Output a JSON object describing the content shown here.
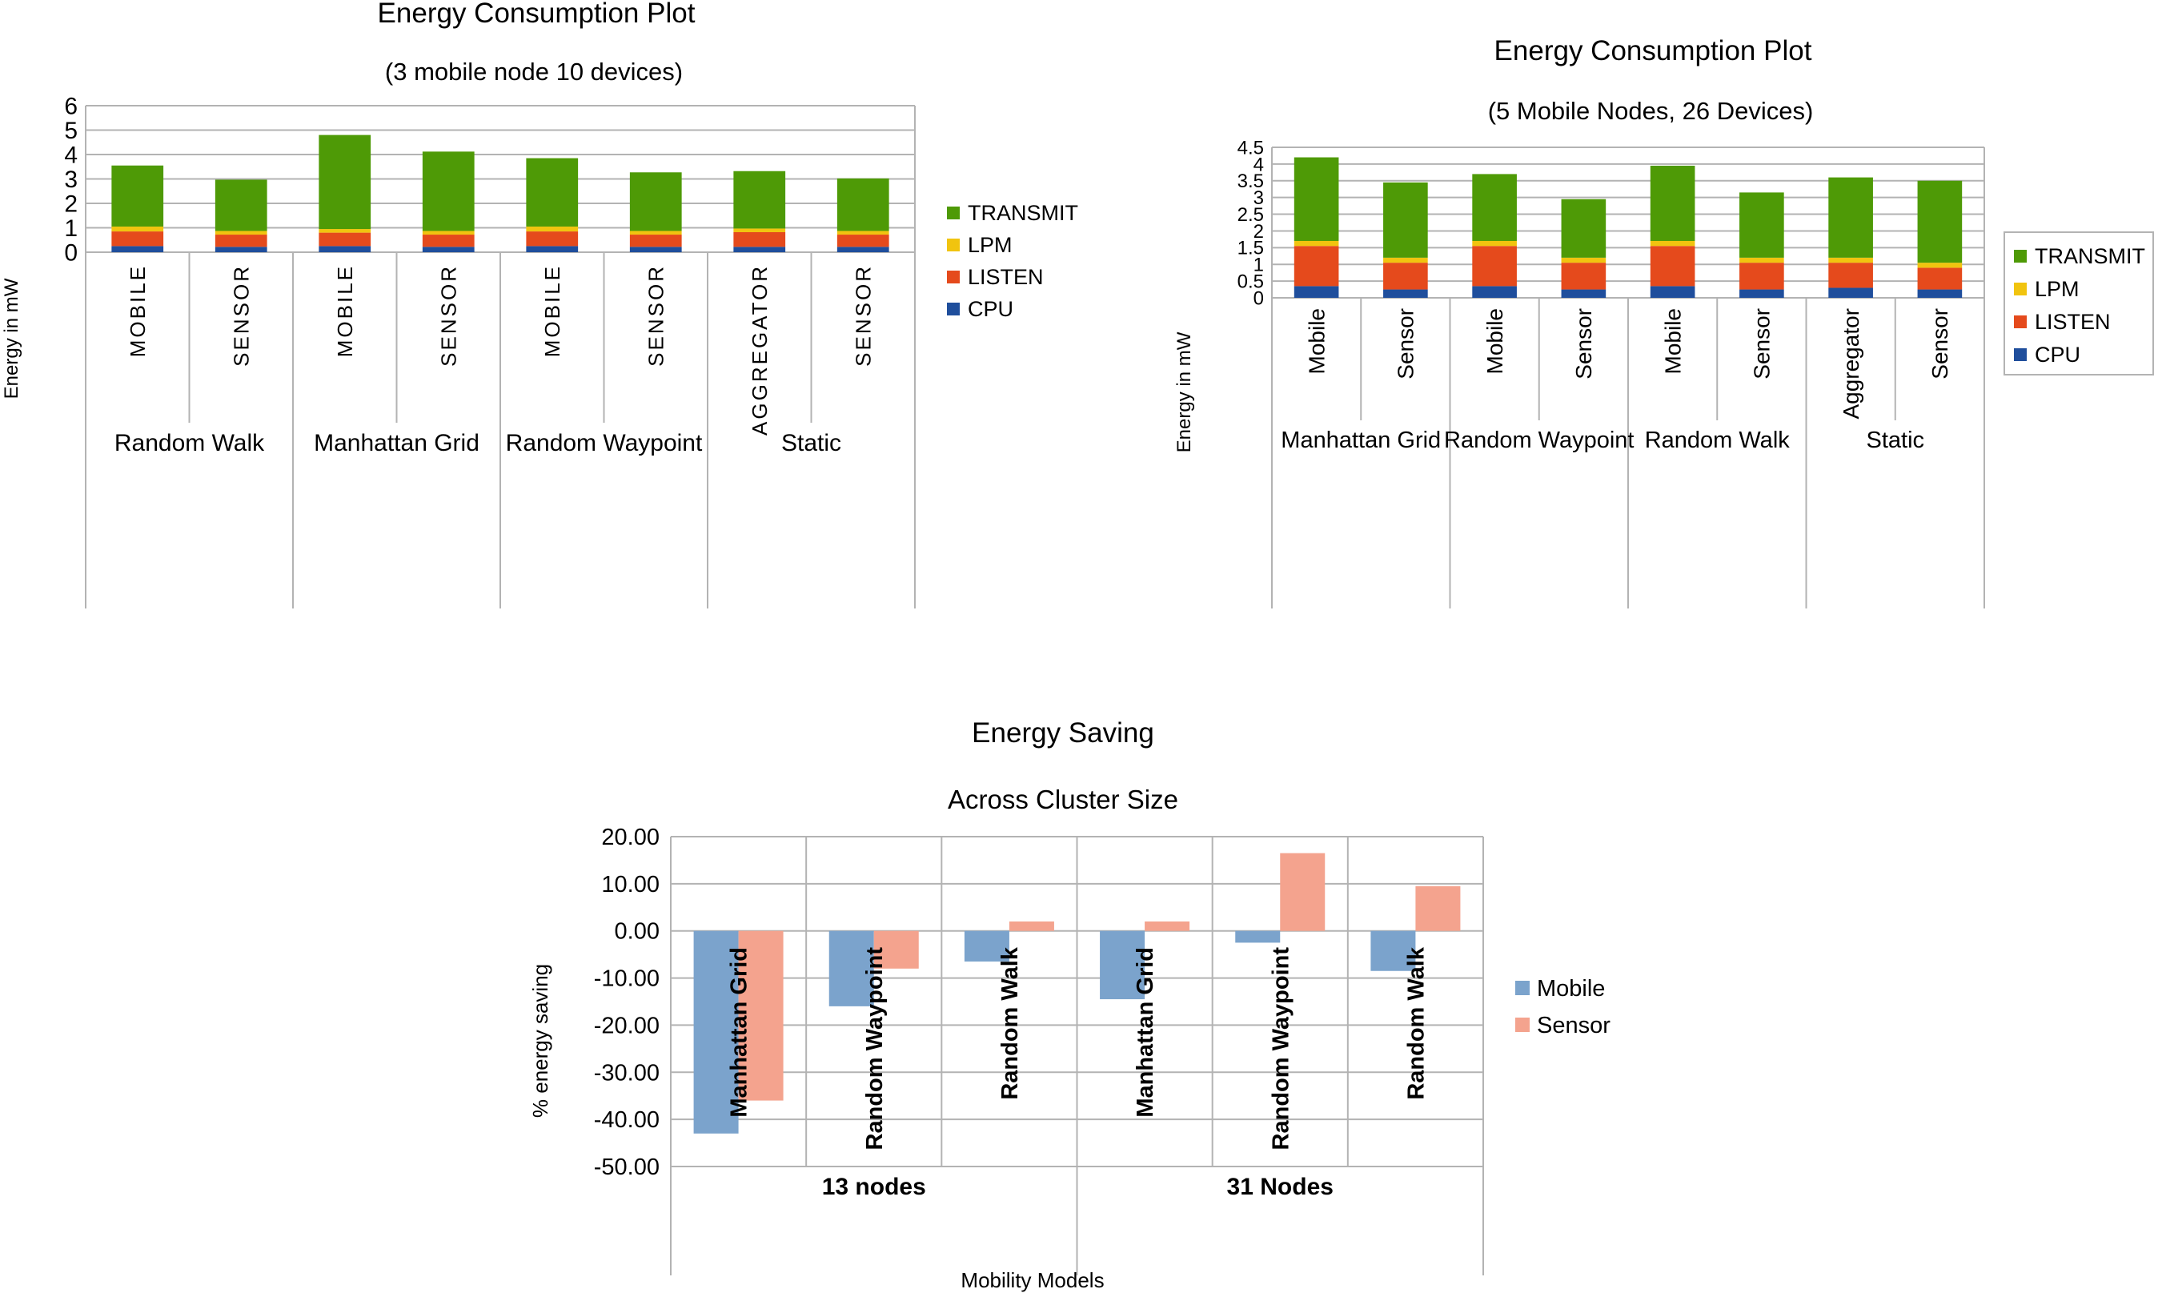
{
  "colors": {
    "transmit": "#4e9a06",
    "lpm": "#f1c40f",
    "listen": "#e54a1c",
    "cpu": "#1f4e9c",
    "mobile": "#7ba3cc",
    "sensor": "#f4a38e",
    "grid": "#b3b3b3"
  },
  "chart_data": [
    {
      "type": "bar",
      "stacked": true,
      "title": "Energy Consumption Plot",
      "subtitle": "(3 mobile node 10 devices)",
      "ylabel": "Energy in mW",
      "ylim": [
        0,
        6
      ],
      "yticks": [
        "0",
        "1",
        "2",
        "3",
        "4",
        "5",
        "6"
      ],
      "legend_position": "right",
      "categories": [
        "MOBILE",
        "SENSOR",
        "MOBILE",
        "SENSOR",
        "MOBILE",
        "SENSOR",
        "AGGREGATOR",
        "SENSOR"
      ],
      "groups": [
        "Random Walk",
        "Manhattan Grid",
        "Random Waypoint",
        "Static"
      ],
      "series": [
        {
          "name": "CPU",
          "values": [
            0.25,
            0.22,
            0.25,
            0.22,
            0.25,
            0.22,
            0.22,
            0.22
          ]
        },
        {
          "name": "LISTEN",
          "values": [
            0.6,
            0.5,
            0.55,
            0.5,
            0.6,
            0.5,
            0.6,
            0.5
          ]
        },
        {
          "name": "LPM",
          "values": [
            0.2,
            0.15,
            0.15,
            0.15,
            0.2,
            0.15,
            0.15,
            0.15
          ]
        },
        {
          "name": "TRANSMIT",
          "values": [
            2.5,
            2.1,
            3.85,
            3.25,
            2.8,
            2.4,
            2.35,
            2.15
          ]
        }
      ]
    },
    {
      "type": "bar",
      "stacked": true,
      "title": "Energy Consumption Plot",
      "subtitle": "(5 Mobile Nodes, 26 Devices)",
      "ylabel": "Energy in mW",
      "ylim": [
        0,
        4.5
      ],
      "yticks": [
        "0",
        "0.5",
        "1",
        "1.5",
        "2",
        "2.5",
        "3",
        "3.5",
        "4",
        "4.5"
      ],
      "legend_position": "right",
      "categories": [
        "Mobile",
        "Sensor",
        "Mobile",
        "Sensor",
        "Mobile",
        "Sensor",
        "Aggregator",
        "Sensor"
      ],
      "groups": [
        "Manhattan Grid",
        "Random Waypoint",
        "Random Walk",
        "Static"
      ],
      "series": [
        {
          "name": "CPU",
          "values": [
            0.35,
            0.25,
            0.35,
            0.25,
            0.35,
            0.25,
            0.3,
            0.25
          ]
        },
        {
          "name": "LISTEN",
          "values": [
            1.2,
            0.8,
            1.2,
            0.8,
            1.2,
            0.8,
            0.75,
            0.65
          ]
        },
        {
          "name": "LPM",
          "values": [
            0.15,
            0.15,
            0.15,
            0.15,
            0.15,
            0.15,
            0.15,
            0.15
          ]
        },
        {
          "name": "TRANSMIT",
          "values": [
            2.5,
            2.25,
            2.0,
            1.75,
            2.25,
            1.95,
            2.4,
            2.45
          ]
        }
      ]
    },
    {
      "type": "bar",
      "title": "Energy Saving",
      "subtitle": "Across Cluster Size",
      "xlabel": "Mobility Models",
      "ylabel": "% energy saving",
      "ylim": [
        -50,
        20
      ],
      "yticks": [
        "20.00",
        "10.00",
        "0.00",
        "-10.00",
        "-20.00",
        "-30.00",
        "-40.00",
        "-50.00"
      ],
      "legend_position": "right",
      "categories": [
        "Manhattan Grid",
        "Random Waypoint",
        "Random Walk",
        "Manhattan Grid",
        "Random Waypoint",
        "Random Walk"
      ],
      "groups": [
        "13 nodes",
        "31 Nodes"
      ],
      "series": [
        {
          "name": "Mobile",
          "values": [
            -43,
            -16,
            -6.5,
            -14.5,
            -2.5,
            -8.5
          ]
        },
        {
          "name": "Sensor",
          "values": [
            -36,
            -8,
            2,
            2,
            16.5,
            9.5
          ]
        }
      ]
    }
  ]
}
